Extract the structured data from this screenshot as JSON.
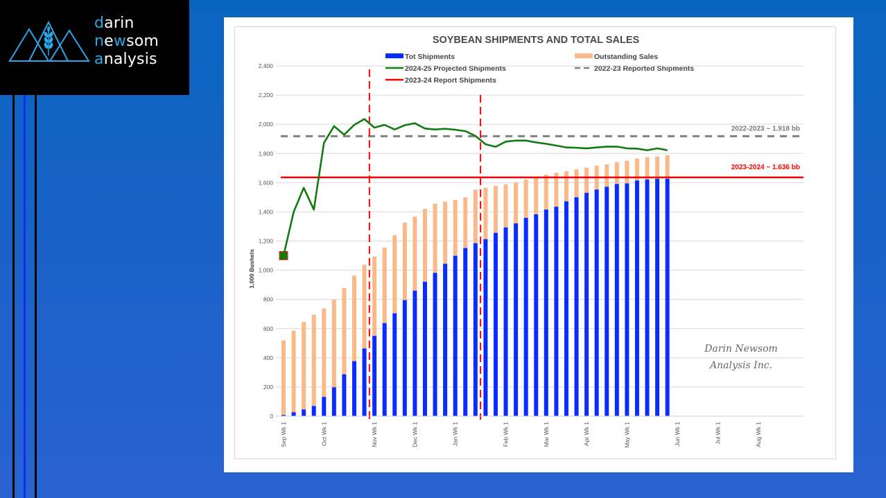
{
  "brand": {
    "line1_hl": "d",
    "line1_rest": "arin",
    "line2_a": "n",
    "line2_b": "e",
    "line2_hl": "w",
    "line2_rest": "som",
    "line3_hl": "a",
    "line3_rest": "nalysis",
    "accent_color": "#2ba6e8"
  },
  "chart_data": {
    "type": "bar",
    "title": "SOYBEAN SHIPMENTS AND TOTAL SALES",
    "ylabel": "1,000 Bushels",
    "xlabel": "",
    "ylim": [
      0,
      2400
    ],
    "yticks": [
      0,
      200,
      400,
      600,
      800,
      1000,
      1200,
      1400,
      1600,
      1800,
      2000,
      2200,
      2400
    ],
    "ytick_labels": [
      "0",
      "200",
      "400",
      "600",
      "800",
      "1,000",
      "1,200",
      "1,400",
      "1,600",
      "1,800",
      "2,000",
      "2,200",
      "2,400"
    ],
    "grid": true,
    "legend_position": "top",
    "n_weeks": 53,
    "x_tick_labels": [
      {
        "week": 0,
        "label": "Sep Wk 1"
      },
      {
        "week": 4,
        "label": "Oct Wk 1"
      },
      {
        "week": 9,
        "label": "Nov Wk 1"
      },
      {
        "week": 13,
        "label": "Dec Wk 1"
      },
      {
        "week": 17,
        "label": "Jan Wk 1"
      },
      {
        "week": 22,
        "label": "Feb Wk 1"
      },
      {
        "week": 26,
        "label": "Mar Wk 1"
      },
      {
        "week": 30,
        "label": "Apr Wk 1"
      },
      {
        "week": 34,
        "label": "May Wk 1"
      },
      {
        "week": 39,
        "label": "Jun Wk 1"
      },
      {
        "week": 43,
        "label": "Jul Wk 1"
      },
      {
        "week": 47,
        "label": "Aug Wk 1"
      }
    ],
    "series": [
      {
        "name": "Tot Shipments",
        "type": "stacked-bar",
        "color": "#0a2cff",
        "values": [
          8,
          27,
          46,
          70,
          132,
          198,
          287,
          377,
          464,
          550,
          638,
          705,
          795,
          860,
          921,
          982,
          1044,
          1099,
          1152,
          1185,
          1213,
          1256,
          1293,
          1321,
          1359,
          1383,
          1416,
          1435,
          1472,
          1500,
          1530,
          1553,
          1572,
          1591,
          1595,
          1615,
          1622,
          1627,
          1627
        ]
      },
      {
        "name": "Outstanding Sales",
        "type": "stacked-bar",
        "color": "#fbb98a",
        "values": [
          512,
          559,
          599,
          625,
          605,
          599,
          591,
          586,
          574,
          543,
          517,
          535,
          531,
          507,
          499,
          474,
          426,
          382,
          347,
          366,
          352,
          322,
          296,
          281,
          262,
          253,
          238,
          233,
          206,
          191,
          173,
          163,
          153,
          150,
          155,
          150,
          152,
          152,
          162
        ]
      },
      {
        "name": "2024-25 Projected Shipments",
        "type": "line",
        "color": "#117a11",
        "values": [
          1100,
          1399,
          1565,
          1415,
          1873,
          1987,
          1928,
          1996,
          2036,
          1977,
          1996,
          1964,
          1993,
          2007,
          1971,
          1964,
          1969,
          1963,
          1953,
          1920,
          1863,
          1846,
          1881,
          1888,
          1888,
          1876,
          1866,
          1854,
          1841,
          1839,
          1835,
          1841,
          1847,
          1847,
          1835,
          1833,
          1822,
          1835,
          1822
        ]
      },
      {
        "name": "2022-23 Reported Shipments",
        "type": "hline-dashed",
        "color": "#808080",
        "value": 1918
      },
      {
        "name": "2023-24 Report Shipments",
        "type": "hline",
        "color": "#ff0000",
        "value": 1636
      }
    ],
    "vertical_markers": [
      {
        "after_week": 8.5,
        "color": "#ff0000",
        "style": "dashed"
      },
      {
        "after_week": 19.5,
        "color": "#ff0000",
        "style": "dashed"
      }
    ],
    "annotations": [
      {
        "text": "2022-2023 ~ 1.918 bb",
        "color": "#7a7a7a",
        "value": 1918
      },
      {
        "text": "2023-2024 ~ 1.636 bb",
        "color": "#ff0000",
        "value": 1636
      }
    ],
    "watermark": [
      "Darin Newsom",
      "Analysis Inc."
    ]
  }
}
